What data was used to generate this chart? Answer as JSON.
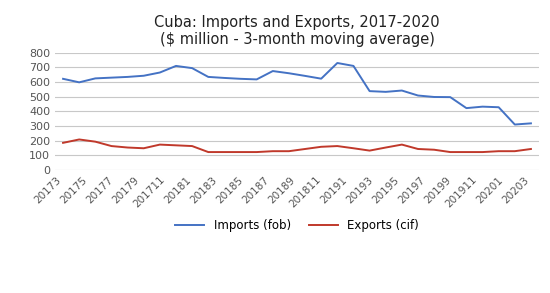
{
  "title": "Cuba: Imports and Exports, 2017-2020\n($ million - 3-month moving average)",
  "xlabel_ticks": [
    "20173",
    "20175",
    "20177",
    "20179",
    "201711",
    "20181",
    "20183",
    "20185",
    "20187",
    "20189",
    "201811",
    "20191",
    "20193",
    "20195",
    "20197",
    "20199",
    "201911",
    "20201",
    "20203"
  ],
  "imports": [
    622,
    598,
    625,
    630,
    635,
    643,
    665,
    710,
    695,
    635,
    628,
    622,
    618,
    675,
    660,
    642,
    623,
    730,
    710,
    538,
    533,
    542,
    508,
    498,
    497,
    422,
    432,
    428,
    310,
    318
  ],
  "exports": [
    185,
    208,
    193,
    163,
    153,
    148,
    173,
    168,
    163,
    122,
    122,
    122,
    122,
    128,
    128,
    143,
    158,
    163,
    148,
    132,
    153,
    173,
    143,
    138,
    122,
    122,
    122,
    128,
    128,
    143
  ],
  "imports_color": "#4472c4",
  "exports_color": "#c0392b",
  "ylim": [
    0,
    800
  ],
  "yticks": [
    0,
    100,
    200,
    300,
    400,
    500,
    600,
    700,
    800
  ],
  "background_color": "#ffffff",
  "grid_color": "#c8c8c8",
  "legend_labels": [
    "Imports (fob)",
    "Exports (cif)"
  ],
  "title_fontsize": 10.5,
  "tick_fontsize": 7.5,
  "ytick_fontsize": 8
}
